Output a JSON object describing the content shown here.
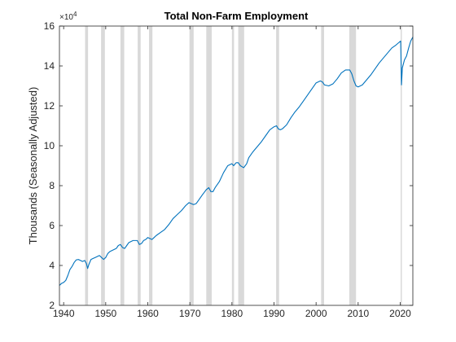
{
  "chart_data": {
    "type": "line",
    "title": "Total Non-Farm Employment",
    "xlabel": "",
    "ylabel": "Thousands (Seasonally Adjusted)",
    "exponent_label": "×10",
    "exponent_power": "4",
    "scale_factor": 10000,
    "xlim": [
      1939,
      2023
    ],
    "ylim": [
      2,
      16
    ],
    "xticks": [
      1940,
      1950,
      1960,
      1970,
      1980,
      1990,
      2000,
      2010,
      2020
    ],
    "yticks": [
      2,
      4,
      6,
      8,
      10,
      12,
      14,
      16
    ],
    "grid": false,
    "line_color": "#0072bd",
    "recession_color": "#d9d9d9",
    "recessions": [
      [
        1945.1,
        1945.8
      ],
      [
        1948.9,
        1949.8
      ],
      [
        1953.5,
        1954.4
      ],
      [
        1957.6,
        1958.3
      ],
      [
        1960.3,
        1961.1
      ],
      [
        1969.9,
        1970.9
      ],
      [
        1973.9,
        1975.2
      ],
      [
        1980.0,
        1980.5
      ],
      [
        1981.5,
        1982.9
      ],
      [
        1990.5,
        1991.2
      ],
      [
        2001.2,
        2001.9
      ],
      [
        2007.9,
        2009.5
      ],
      [
        2020.1,
        2020.3
      ]
    ],
    "series": [
      {
        "values": [
          [
            1939.0,
            3.0
          ],
          [
            1939.5,
            3.1
          ],
          [
            1940.0,
            3.15
          ],
          [
            1940.5,
            3.25
          ],
          [
            1941.0,
            3.5
          ],
          [
            1941.5,
            3.8
          ],
          [
            1942.0,
            3.95
          ],
          [
            1942.5,
            4.15
          ],
          [
            1943.0,
            4.28
          ],
          [
            1943.5,
            4.3
          ],
          [
            1944.0,
            4.25
          ],
          [
            1944.5,
            4.2
          ],
          [
            1945.0,
            4.25
          ],
          [
            1945.4,
            4.1
          ],
          [
            1945.7,
            3.85
          ],
          [
            1946.0,
            4.05
          ],
          [
            1946.5,
            4.3
          ],
          [
            1947.0,
            4.35
          ],
          [
            1947.5,
            4.4
          ],
          [
            1948.0,
            4.45
          ],
          [
            1948.5,
            4.5
          ],
          [
            1949.0,
            4.4
          ],
          [
            1949.5,
            4.3
          ],
          [
            1950.0,
            4.4
          ],
          [
            1950.5,
            4.6
          ],
          [
            1951.0,
            4.7
          ],
          [
            1951.5,
            4.75
          ],
          [
            1952.0,
            4.8
          ],
          [
            1952.5,
            4.85
          ],
          [
            1953.0,
            5.0
          ],
          [
            1953.5,
            5.05
          ],
          [
            1954.0,
            4.9
          ],
          [
            1954.5,
            4.85
          ],
          [
            1955.0,
            5.0
          ],
          [
            1955.5,
            5.15
          ],
          [
            1956.0,
            5.2
          ],
          [
            1956.5,
            5.25
          ],
          [
            1957.0,
            5.25
          ],
          [
            1957.5,
            5.25
          ],
          [
            1958.0,
            5.05
          ],
          [
            1958.5,
            5.1
          ],
          [
            1959.0,
            5.25
          ],
          [
            1959.5,
            5.3
          ],
          [
            1960.0,
            5.4
          ],
          [
            1960.5,
            5.35
          ],
          [
            1961.0,
            5.3
          ],
          [
            1961.5,
            5.4
          ],
          [
            1962.0,
            5.5
          ],
          [
            1963.0,
            5.65
          ],
          [
            1964.0,
            5.8
          ],
          [
            1965.0,
            6.05
          ],
          [
            1966.0,
            6.35
          ],
          [
            1967.0,
            6.55
          ],
          [
            1968.0,
            6.75
          ],
          [
            1969.0,
            7.0
          ],
          [
            1969.8,
            7.15
          ],
          [
            1970.3,
            7.1
          ],
          [
            1970.9,
            7.05
          ],
          [
            1971.5,
            7.1
          ],
          [
            1972.0,
            7.25
          ],
          [
            1973.0,
            7.55
          ],
          [
            1973.9,
            7.8
          ],
          [
            1974.5,
            7.9
          ],
          [
            1975.0,
            7.7
          ],
          [
            1975.5,
            7.7
          ],
          [
            1976.0,
            7.9
          ],
          [
            1977.0,
            8.2
          ],
          [
            1978.0,
            8.65
          ],
          [
            1979.0,
            9.0
          ],
          [
            1980.0,
            9.1
          ],
          [
            1980.4,
            9.0
          ],
          [
            1981.0,
            9.15
          ],
          [
            1981.5,
            9.15
          ],
          [
            1982.0,
            9.0
          ],
          [
            1982.8,
            8.9
          ],
          [
            1983.5,
            9.1
          ],
          [
            1984.0,
            9.4
          ],
          [
            1985.0,
            9.7
          ],
          [
            1986.0,
            9.95
          ],
          [
            1987.0,
            10.2
          ],
          [
            1988.0,
            10.5
          ],
          [
            1989.0,
            10.8
          ],
          [
            1990.0,
            10.95
          ],
          [
            1990.6,
            11.0
          ],
          [
            1991.0,
            10.85
          ],
          [
            1991.5,
            10.8
          ],
          [
            1992.0,
            10.85
          ],
          [
            1993.0,
            11.05
          ],
          [
            1994.0,
            11.4
          ],
          [
            1995.0,
            11.7
          ],
          [
            1996.0,
            11.95
          ],
          [
            1997.0,
            12.25
          ],
          [
            1998.0,
            12.55
          ],
          [
            1999.0,
            12.85
          ],
          [
            2000.0,
            13.15
          ],
          [
            2001.0,
            13.25
          ],
          [
            2001.5,
            13.2
          ],
          [
            2002.0,
            13.05
          ],
          [
            2003.0,
            13.0
          ],
          [
            2004.0,
            13.1
          ],
          [
            2005.0,
            13.35
          ],
          [
            2006.0,
            13.65
          ],
          [
            2007.0,
            13.8
          ],
          [
            2008.0,
            13.8
          ],
          [
            2008.5,
            13.6
          ],
          [
            2009.0,
            13.25
          ],
          [
            2009.5,
            13.0
          ],
          [
            2010.0,
            12.95
          ],
          [
            2011.0,
            13.05
          ],
          [
            2012.0,
            13.3
          ],
          [
            2013.0,
            13.55
          ],
          [
            2014.0,
            13.85
          ],
          [
            2015.0,
            14.15
          ],
          [
            2016.0,
            14.4
          ],
          [
            2017.0,
            14.65
          ],
          [
            2018.0,
            14.9
          ],
          [
            2019.0,
            15.05
          ],
          [
            2020.1,
            15.25
          ],
          [
            2020.3,
            13.05
          ],
          [
            2020.5,
            13.9
          ],
          [
            2021.0,
            14.3
          ],
          [
            2021.5,
            14.5
          ],
          [
            2022.0,
            14.9
          ],
          [
            2022.5,
            15.25
          ],
          [
            2023.0,
            15.45
          ]
        ]
      }
    ]
  }
}
